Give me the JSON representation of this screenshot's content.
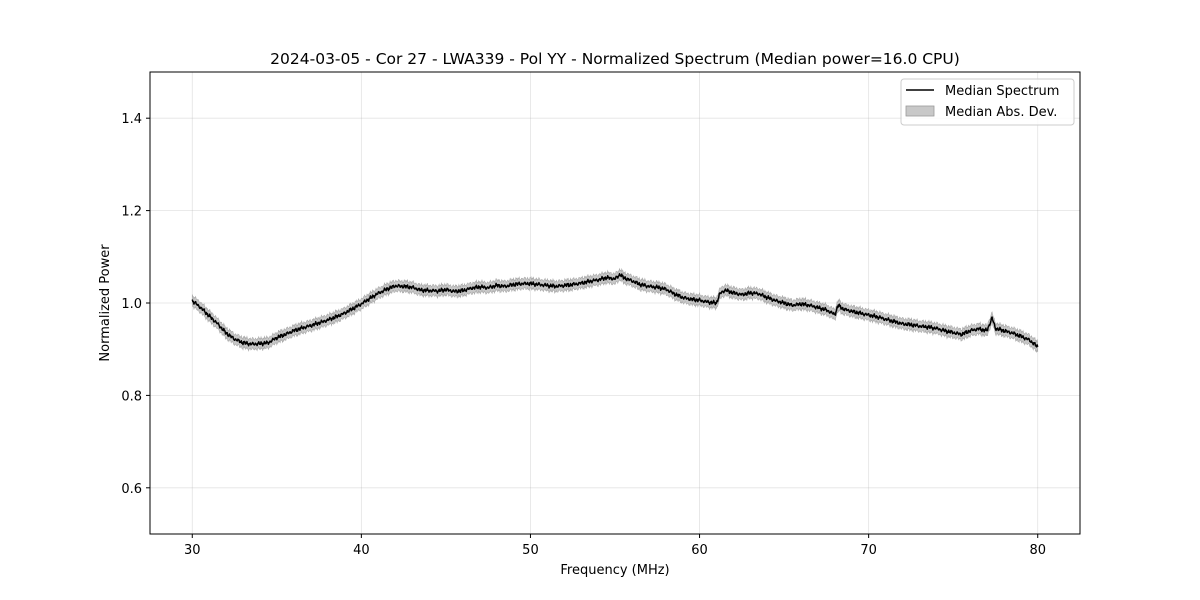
{
  "chart_data": {
    "type": "line",
    "title": "2024-03-05 - Cor 27 - LWA339 - Pol YY - Normalized Spectrum (Median power=16.0 CPU)",
    "xlabel": "Frequency (MHz)",
    "ylabel": "Normalized Power",
    "xlim": [
      27.5,
      82.5
    ],
    "ylim": [
      0.5,
      1.5
    ],
    "xticks": [
      30,
      40,
      50,
      60,
      70,
      80
    ],
    "yticks": [
      0.6,
      0.8,
      1.0,
      1.2,
      1.4
    ],
    "xtick_labels": [
      "30",
      "40",
      "50",
      "60",
      "70",
      "80"
    ],
    "ytick_labels": [
      "0.6",
      "0.8",
      "1.0",
      "1.2",
      "1.4"
    ],
    "grid": true,
    "legend_position": "top-right",
    "legend": [
      "Median Spectrum",
      "Median Abs. Dev."
    ],
    "series": [
      {
        "name": "Median Spectrum",
        "color": "#000000",
        "x": [
          30.0,
          30.5,
          31.0,
          31.5,
          32.0,
          32.5,
          33.0,
          33.5,
          34.0,
          34.5,
          35.0,
          35.5,
          36.0,
          36.5,
          37.0,
          37.5,
          38.0,
          38.5,
          39.0,
          39.5,
          40.0,
          40.5,
          41.0,
          41.5,
          42.0,
          42.5,
          43.0,
          43.5,
          44.0,
          44.5,
          45.0,
          45.5,
          46.0,
          46.5,
          47.0,
          47.5,
          48.0,
          48.5,
          49.0,
          49.5,
          50.0,
          50.5,
          51.0,
          51.5,
          52.0,
          52.5,
          53.0,
          53.5,
          54.0,
          54.5,
          55.0,
          55.3,
          55.5,
          56.0,
          56.5,
          57.0,
          57.5,
          58.0,
          58.5,
          59.0,
          59.5,
          60.0,
          60.5,
          61.0,
          61.2,
          61.5,
          62.0,
          62.5,
          63.0,
          63.5,
          64.0,
          64.5,
          65.0,
          65.5,
          66.0,
          66.5,
          67.0,
          67.5,
          68.0,
          68.2,
          68.5,
          69.0,
          69.5,
          70.0,
          70.5,
          71.0,
          71.5,
          72.0,
          72.5,
          73.0,
          73.5,
          74.0,
          74.5,
          75.0,
          75.5,
          76.0,
          76.5,
          77.0,
          77.3,
          77.5,
          78.0,
          78.5,
          79.0,
          79.5,
          80.0
        ],
        "y": [
          1.005,
          0.99,
          0.972,
          0.955,
          0.935,
          0.922,
          0.914,
          0.911,
          0.912,
          0.914,
          0.925,
          0.932,
          0.94,
          0.946,
          0.951,
          0.957,
          0.963,
          0.97,
          0.978,
          0.988,
          0.998,
          1.01,
          1.021,
          1.03,
          1.037,
          1.036,
          1.034,
          1.028,
          1.027,
          1.026,
          1.029,
          1.025,
          1.027,
          1.032,
          1.035,
          1.033,
          1.038,
          1.036,
          1.04,
          1.042,
          1.042,
          1.04,
          1.038,
          1.036,
          1.038,
          1.04,
          1.043,
          1.047,
          1.05,
          1.055,
          1.052,
          1.062,
          1.055,
          1.048,
          1.04,
          1.036,
          1.034,
          1.03,
          1.02,
          1.012,
          1.008,
          1.006,
          1.002,
          1.0,
          1.02,
          1.028,
          1.022,
          1.018,
          1.022,
          1.02,
          1.012,
          1.005,
          1.0,
          0.995,
          0.998,
          0.995,
          0.99,
          0.985,
          0.975,
          0.995,
          0.987,
          0.982,
          0.978,
          0.974,
          0.97,
          0.965,
          0.96,
          0.955,
          0.953,
          0.95,
          0.948,
          0.945,
          0.94,
          0.936,
          0.932,
          0.94,
          0.944,
          0.94,
          0.968,
          0.945,
          0.94,
          0.935,
          0.928,
          0.92,
          0.905
        ]
      }
    ],
    "band": {
      "name": "Median Abs. Dev.",
      "color": "#c8c8c8",
      "half_width": 0.011
    }
  }
}
